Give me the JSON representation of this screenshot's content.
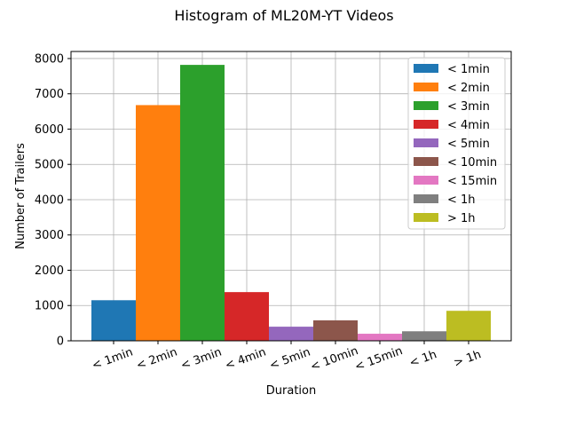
{
  "chart_data": {
    "type": "bar",
    "title": "Histogram of ML20M-YT Videos",
    "xlabel": "Duration",
    "ylabel": "Number of Trailers",
    "categories": [
      "< 1min",
      "< 2min",
      "< 3min",
      "< 4min",
      "< 5min",
      "< 10min",
      "< 15min",
      "< 1h",
      "> 1h"
    ],
    "values": [
      1150,
      6680,
      7820,
      1380,
      400,
      580,
      200,
      270,
      850
    ],
    "colors": [
      "#1f77b4",
      "#ff7f0e",
      "#2ca02c",
      "#d62728",
      "#9467bd",
      "#8c564b",
      "#e377c2",
      "#7f7f7f",
      "#bcbd22"
    ],
    "ylim": [
      0,
      8200
    ],
    "yticks": [
      0,
      1000,
      2000,
      3000,
      4000,
      5000,
      6000,
      7000,
      8000
    ],
    "grid": true,
    "legend_position": "top-right"
  }
}
